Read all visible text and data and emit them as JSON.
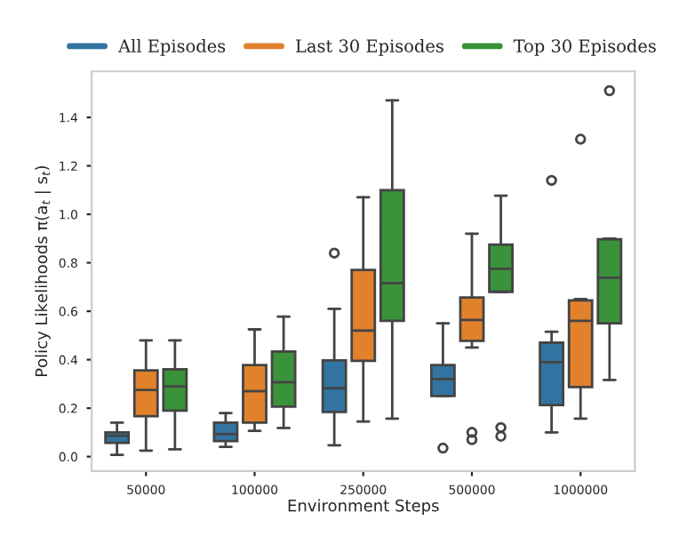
{
  "chart_data": {
    "type": "box",
    "xlabel": "Environment Steps",
    "ylabel": "Policy Likelihoods π(a$_{t}$ | s$_{t}$)",
    "categories": [
      "50000",
      "100000",
      "250000",
      "500000",
      "1000000"
    ],
    "ylim": [
      -0.06,
      1.59
    ],
    "yticks": [
      {
        "value": 0,
        "label": "0.0"
      },
      0.2,
      0.4,
      0.6,
      0.8,
      {
        "value": 1,
        "label": "1.0"
      },
      1.2,
      1.4
    ],
    "grid": false,
    "legend": "top",
    "series": [
      {
        "name": "All Episodes",
        "color": "#3274a1",
        "boxes": [
          {
            "low": 0.007,
            "q1": 0.057,
            "median": 0.086,
            "q3": 0.1,
            "high": 0.14
          },
          {
            "low": 0.04,
            "q1": 0.064,
            "median": 0.093,
            "q3": 0.14,
            "high": 0.18
          },
          {
            "low": 0.047,
            "q1": 0.184,
            "median": 0.282,
            "q3": 0.397,
            "high": 0.61,
            "outliers": [
              0.84
            ]
          },
          {
            "low": 0.25,
            "q1": 0.25,
            "median": 0.32,
            "q3": 0.378,
            "high": 0.55,
            "outliers": [
              0.035
            ]
          },
          {
            "low": 0.1,
            "q1": 0.213,
            "median": 0.39,
            "q3": 0.47,
            "high": 0.515,
            "outliers": [
              1.14
            ]
          }
        ]
      },
      {
        "name": "Last 30 Episodes",
        "color": "#e1812c",
        "boxes": [
          {
            "low": 0.025,
            "q1": 0.167,
            "median": 0.275,
            "q3": 0.356,
            "high": 0.48
          },
          {
            "low": 0.106,
            "q1": 0.14,
            "median": 0.27,
            "q3": 0.378,
            "high": 0.525
          },
          {
            "low": 0.145,
            "q1": 0.395,
            "median": 0.52,
            "q3": 0.77,
            "high": 1.07
          },
          {
            "low": 0.45,
            "q1": 0.478,
            "median": 0.564,
            "q3": 0.657,
            "high": 0.92,
            "outliers": [
              0.1,
              0.07
            ]
          },
          {
            "low": 0.157,
            "q1": 0.287,
            "median": 0.56,
            "q3": 0.645,
            "high": 0.65,
            "outliers": [
              1.31
            ]
          }
        ]
      },
      {
        "name": "Top 30 Episodes",
        "color": "#3a923a",
        "boxes": [
          {
            "low": 0.03,
            "q1": 0.19,
            "median": 0.29,
            "q3": 0.36,
            "high": 0.48
          },
          {
            "low": 0.118,
            "q1": 0.206,
            "median": 0.307,
            "q3": 0.434,
            "high": 0.578
          },
          {
            "low": 0.157,
            "q1": 0.56,
            "median": 0.716,
            "q3": 1.1,
            "high": 1.47
          },
          {
            "low": 0.68,
            "q1": 0.68,
            "median": 0.775,
            "q3": 0.875,
            "high": 1.077,
            "outliers": [
              0.12,
              0.084
            ]
          },
          {
            "low": 0.316,
            "q1": 0.55,
            "median": 0.738,
            "q3": 0.897,
            "high": 0.9,
            "outliers": [
              1.51
            ]
          }
        ]
      }
    ]
  }
}
